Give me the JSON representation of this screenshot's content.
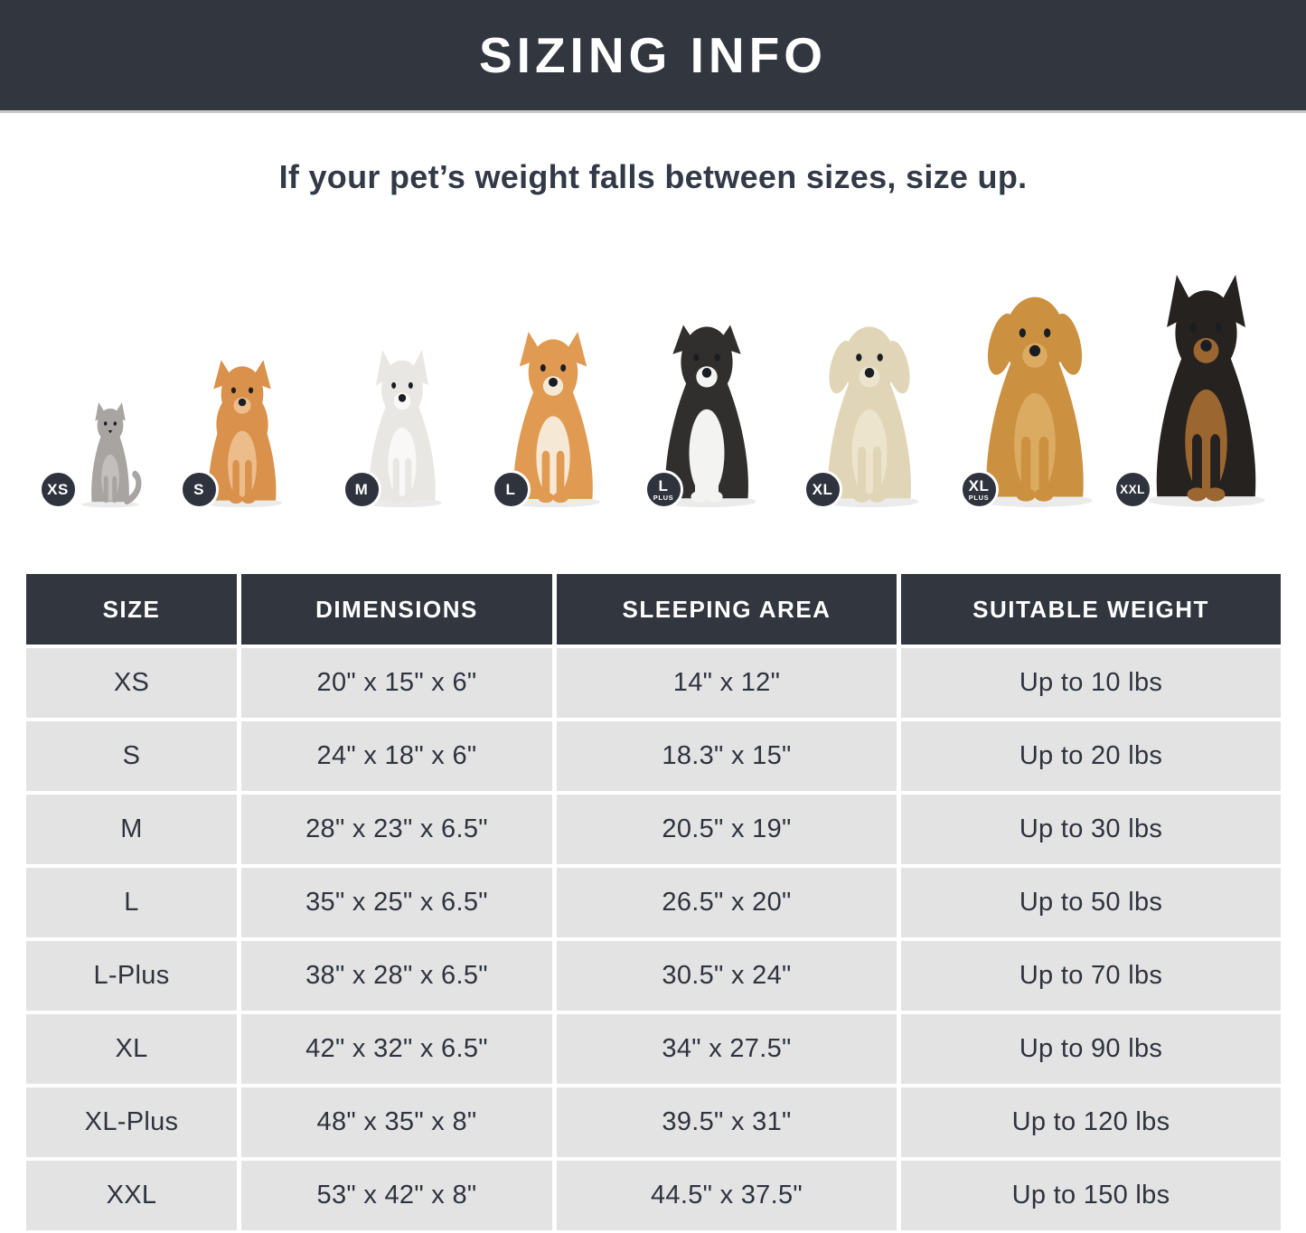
{
  "title": "SIZING INFO",
  "subtitle": "If your pet’s weight falls between sizes, size up.",
  "colors": {
    "banner_bg": "#32363F",
    "banner_text": "#FFFFFF",
    "badge_bg": "#2F333D",
    "badge_ring": "#FFFFFF",
    "table_header_bg": "#32363F",
    "table_header_text": "#FFFFFF",
    "row_bg": "#E3E3E4",
    "cell_text": "#2E333E",
    "subtitle_text": "#333A47"
  },
  "pets": [
    {
      "animal": "cat",
      "breed": "gray-cat",
      "badge": "XS",
      "badge_sub": ""
    },
    {
      "animal": "dog",
      "breed": "pomeranian",
      "badge": "S",
      "badge_sub": ""
    },
    {
      "animal": "dog",
      "breed": "french-bulldog",
      "badge": "M",
      "badge_sub": ""
    },
    {
      "animal": "dog",
      "breed": "shiba-inu",
      "badge": "L",
      "badge_sub": ""
    },
    {
      "animal": "dog",
      "breed": "border-collie",
      "badge": "L",
      "badge_sub": "PLUS"
    },
    {
      "animal": "dog",
      "breed": "labrador",
      "badge": "XL",
      "badge_sub": ""
    },
    {
      "animal": "dog",
      "breed": "golden-retriever",
      "badge": "XL",
      "badge_sub": "PLUS"
    },
    {
      "animal": "dog",
      "breed": "doberman",
      "badge": "XXL",
      "badge_sub": ""
    }
  ],
  "table": {
    "columns": [
      "SIZE",
      "DIMENSIONS",
      "SLEEPING AREA",
      "SUITABLE WEIGHT"
    ],
    "rows": [
      {
        "size": "XS",
        "dimensions": "20\" x 15\" x 6\"",
        "sleeping_area": "14\" x 12\"",
        "suitable_weight": "Up to 10 lbs"
      },
      {
        "size": "S",
        "dimensions": "24\" x 18\" x 6\"",
        "sleeping_area": "18.3\" x 15\"",
        "suitable_weight": "Up to 20 lbs"
      },
      {
        "size": "M",
        "dimensions": "28\" x 23\" x 6.5\"",
        "sleeping_area": "20.5\" x 19\"",
        "suitable_weight": "Up to 30 lbs"
      },
      {
        "size": "L",
        "dimensions": "35\" x 25\" x 6.5\"",
        "sleeping_area": "26.5\" x 20\"",
        "suitable_weight": "Up to 50 lbs"
      },
      {
        "size": "L-Plus",
        "dimensions": "38\" x 28\" x 6.5\"",
        "sleeping_area": "30.5\" x 24\"",
        "suitable_weight": "Up to 70 lbs"
      },
      {
        "size": "XL",
        "dimensions": "42\" x 32\" x 6.5\"",
        "sleeping_area": "34\" x 27.5\"",
        "suitable_weight": "Up to 90 lbs"
      },
      {
        "size": "XL-Plus",
        "dimensions": "48\" x 35\" x 8\"",
        "sleeping_area": "39.5\" x 31\"",
        "suitable_weight": "Up to 120 lbs"
      },
      {
        "size": "XXL",
        "dimensions": "53\" x 42\" x 8\"",
        "sleeping_area": "44.5\" x 37.5\"",
        "suitable_weight": "Up to 150 lbs"
      }
    ]
  },
  "chart_data": {
    "type": "table",
    "title": "SIZING INFO",
    "columns": [
      "SIZE",
      "DIMENSIONS",
      "SLEEPING AREA",
      "SUITABLE WEIGHT"
    ],
    "rows": [
      [
        "XS",
        "20\" x 15\" x 6\"",
        "14\" x 12\"",
        "Up to 10 lbs"
      ],
      [
        "S",
        "24\" x 18\" x 6\"",
        "18.3\" x 15\"",
        "Up to 20 lbs"
      ],
      [
        "M",
        "28\" x 23\" x 6.5\"",
        "20.5\" x 19\"",
        "Up to 30 lbs"
      ],
      [
        "L",
        "35\" x 25\" x 6.5\"",
        "26.5\" x 20\"",
        "Up to 50 lbs"
      ],
      [
        "L-Plus",
        "38\" x 28\" x 6.5\"",
        "30.5\" x 24\"",
        "Up to 70 lbs"
      ],
      [
        "XL",
        "42\" x 32\" x 6.5\"",
        "34\" x 27.5\"",
        "Up to 90 lbs"
      ],
      [
        "XL-Plus",
        "48\" x 35\" x 8\"",
        "39.5\" x 31\"",
        "Up to 120 lbs"
      ],
      [
        "XXL",
        "53\" x 42\" x 8\"",
        "44.5\" x 37.5\"",
        "Up to 150 lbs"
      ]
    ]
  }
}
